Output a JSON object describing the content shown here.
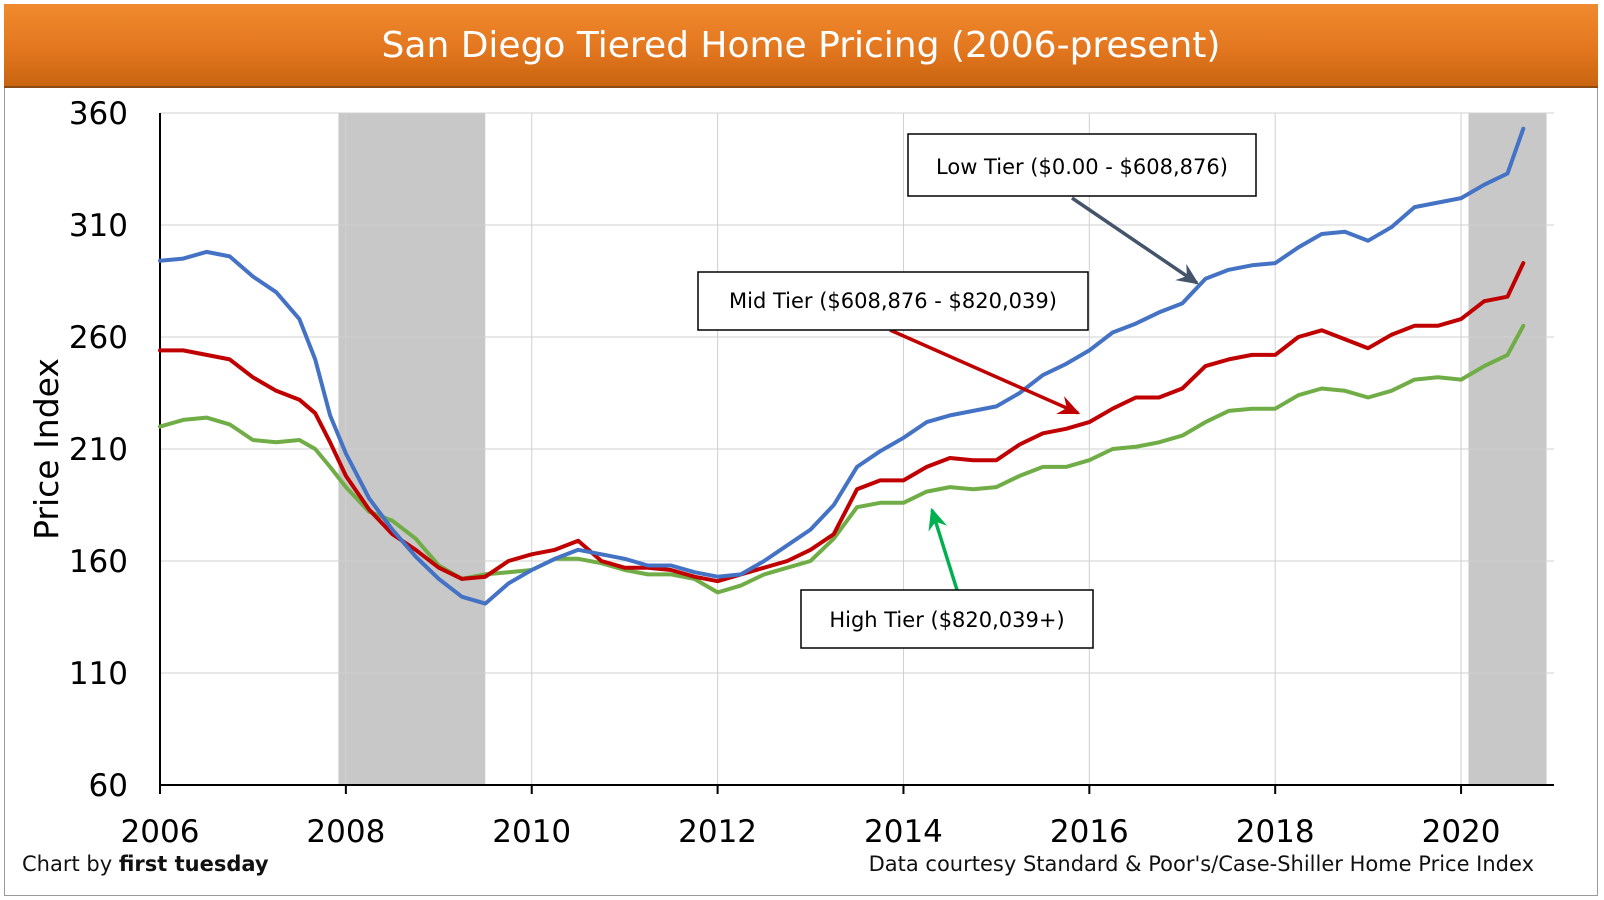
{
  "title": "San Diego Tiered Home Pricing (2006-present)",
  "footer": {
    "credit_prefix": "Chart by",
    "credit_brand": "first tuesday",
    "source": "Data courtesy Standard & Poor's/Case-Shiller Home Price Index"
  },
  "colors": {
    "title_bar": "#e3771f",
    "low": "#4472c4",
    "mid": "#c00000",
    "high": "#70ad47",
    "recession": "#c8c8c8",
    "low_arrow": "#44546a",
    "high_arrow": "#00b050"
  },
  "chart_data": {
    "type": "line",
    "title": "San Diego Tiered Home Pricing (2006-present)",
    "xlabel": "",
    "ylabel": "Price Index",
    "xlim": [
      2006,
      2021
    ],
    "ylim": [
      60,
      360
    ],
    "xticks": [
      2006,
      2008,
      2010,
      2012,
      2014,
      2016,
      2018,
      2020
    ],
    "yticks": [
      60,
      110,
      160,
      210,
      260,
      310,
      360
    ],
    "grid": true,
    "recession_bands": [
      [
        2007.92,
        2009.5
      ],
      [
        2020.08,
        2020.92
      ]
    ],
    "series": [
      {
        "name": "Low Tier ($0.00 - $608,876)",
        "color": "#4472c4",
        "x": [
          2006,
          2006.25,
          2006.5,
          2006.75,
          2007,
          2007.25,
          2007.5,
          2007.67,
          2007.83,
          2008,
          2008.25,
          2008.5,
          2008.75,
          2009,
          2009.25,
          2009.5,
          2009.75,
          2010,
          2010.25,
          2010.5,
          2010.75,
          2011,
          2011.25,
          2011.5,
          2011.75,
          2012,
          2012.25,
          2012.5,
          2012.75,
          2013,
          2013.25,
          2013.5,
          2013.75,
          2014,
          2014.25,
          2014.5,
          2014.75,
          2015,
          2015.25,
          2015.5,
          2015.75,
          2016,
          2016.25,
          2016.5,
          2016.75,
          2017,
          2017.25,
          2017.5,
          2017.75,
          2018,
          2018.25,
          2018.5,
          2018.75,
          2019,
          2019.25,
          2019.5,
          2019.75,
          2020,
          2020.25,
          2020.5,
          2020.67
        ],
        "values": [
          294,
          295,
          298,
          296,
          287,
          280,
          268,
          250,
          225,
          208,
          188,
          174,
          162,
          152,
          144,
          141,
          150,
          156,
          161,
          165,
          163,
          161,
          158,
          158,
          155,
          153,
          154,
          160,
          167,
          174,
          185,
          202,
          209,
          215,
          222,
          225,
          227,
          229,
          235,
          243,
          248,
          254,
          262,
          266,
          271,
          275,
          286,
          290,
          292,
          293,
          300,
          306,
          307,
          303,
          309,
          318,
          320,
          322,
          328,
          333,
          353
        ]
      },
      {
        "name": "Mid Tier ($608,876 - $820,039)",
        "color": "#c00000",
        "x": [
          2006,
          2006.25,
          2006.5,
          2006.75,
          2007,
          2007.25,
          2007.5,
          2007.67,
          2007.83,
          2008,
          2008.25,
          2008.5,
          2008.75,
          2009,
          2009.25,
          2009.5,
          2009.75,
          2010,
          2010.25,
          2010.5,
          2010.75,
          2011,
          2011.25,
          2011.5,
          2011.75,
          2012,
          2012.25,
          2012.5,
          2012.75,
          2013,
          2013.25,
          2013.5,
          2013.75,
          2014,
          2014.25,
          2014.5,
          2014.75,
          2015,
          2015.25,
          2015.5,
          2015.75,
          2016,
          2016.25,
          2016.5,
          2016.75,
          2017,
          2017.25,
          2017.5,
          2017.75,
          2018,
          2018.25,
          2018.5,
          2018.75,
          2019,
          2019.25,
          2019.5,
          2019.75,
          2020,
          2020.25,
          2020.5,
          2020.67
        ],
        "values": [
          254,
          254,
          252,
          250,
          242,
          236,
          232,
          226,
          213,
          198,
          183,
          172,
          165,
          157,
          152,
          153,
          160,
          163,
          165,
          169,
          160,
          157,
          157,
          156,
          153,
          151,
          154,
          157,
          160,
          165,
          172,
          192,
          196,
          196,
          202,
          206,
          205,
          205,
          212,
          217,
          219,
          222,
          228,
          233,
          233,
          237,
          247,
          250,
          252,
          252,
          260,
          263,
          259,
          255,
          261,
          265,
          265,
          268,
          276,
          278,
          293
        ]
      },
      {
        "name": "High Tier ($820,039+)",
        "color": "#70ad47",
        "x": [
          2006,
          2006.25,
          2006.5,
          2006.75,
          2007,
          2007.25,
          2007.5,
          2007.67,
          2007.83,
          2008,
          2008.25,
          2008.5,
          2008.75,
          2009,
          2009.25,
          2009.5,
          2009.75,
          2010,
          2010.25,
          2010.5,
          2010.75,
          2011,
          2011.25,
          2011.5,
          2011.75,
          2012,
          2012.25,
          2012.5,
          2012.75,
          2013,
          2013.25,
          2013.5,
          2013.75,
          2014,
          2014.25,
          2014.5,
          2014.75,
          2015,
          2015.25,
          2015.5,
          2015.75,
          2016,
          2016.25,
          2016.5,
          2016.75,
          2017,
          2017.25,
          2017.5,
          2017.75,
          2018,
          2018.25,
          2018.5,
          2018.75,
          2019,
          2019.25,
          2019.5,
          2019.75,
          2020,
          2020.25,
          2020.5,
          2020.67
        ],
        "values": [
          220,
          223,
          224,
          221,
          214,
          213,
          214,
          210,
          202,
          193,
          182,
          178,
          170,
          158,
          152,
          154,
          155,
          156,
          161,
          161,
          159,
          156,
          154,
          154,
          152,
          146,
          149,
          154,
          157,
          160,
          170,
          184,
          186,
          186,
          191,
          193,
          192,
          193,
          198,
          202,
          202,
          205,
          210,
          211,
          213,
          216,
          222,
          227,
          228,
          228,
          234,
          237,
          236,
          233,
          236,
          241,
          242,
          241,
          247,
          252,
          265
        ]
      }
    ],
    "annotations": [
      {
        "text": "Low Tier ($0.00 - $608,876)",
        "series": "low"
      },
      {
        "text": "Mid Tier ($608,876 - $820,039)",
        "series": "mid"
      },
      {
        "text": "High Tier ($820,039+)",
        "series": "high"
      }
    ]
  }
}
